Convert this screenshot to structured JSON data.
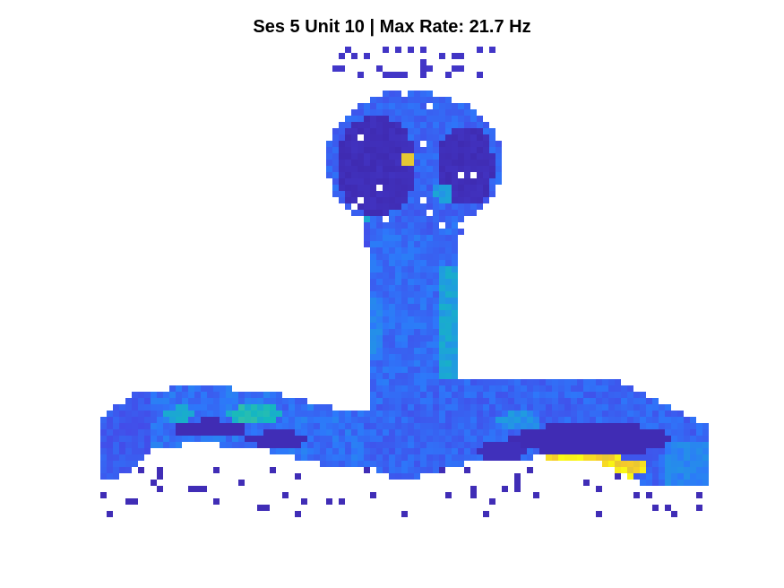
{
  "chart_data": {
    "type": "heatmap",
    "title": "Ses 5 Unit 10 | Max Rate: 21.7 Hz",
    "xlabel": "",
    "ylabel": "",
    "axes_visible": false,
    "colormap": "parula",
    "value_unit": "Hz",
    "clim": [
      0,
      21.7
    ],
    "grid": false,
    "empty_bins_color": "#ffffff",
    "regions": [
      {
        "name": "stem",
        "mean_rate_hz": 4.5
      },
      {
        "name": "top-left lobe",
        "mean_rate_hz": 0.5
      },
      {
        "name": "top-right lobe",
        "mean_rate_hz": 0.8
      },
      {
        "name": "left arm",
        "mean_rate_hz": 4.0
      },
      {
        "name": "right arm",
        "mean_rate_hz": 3.0
      },
      {
        "name": "right arm bottom edge",
        "mean_rate_hz": 19.5
      }
    ],
    "peak": {
      "location": "right arm bottom edge",
      "rate_hz": 21.7
    }
  }
}
